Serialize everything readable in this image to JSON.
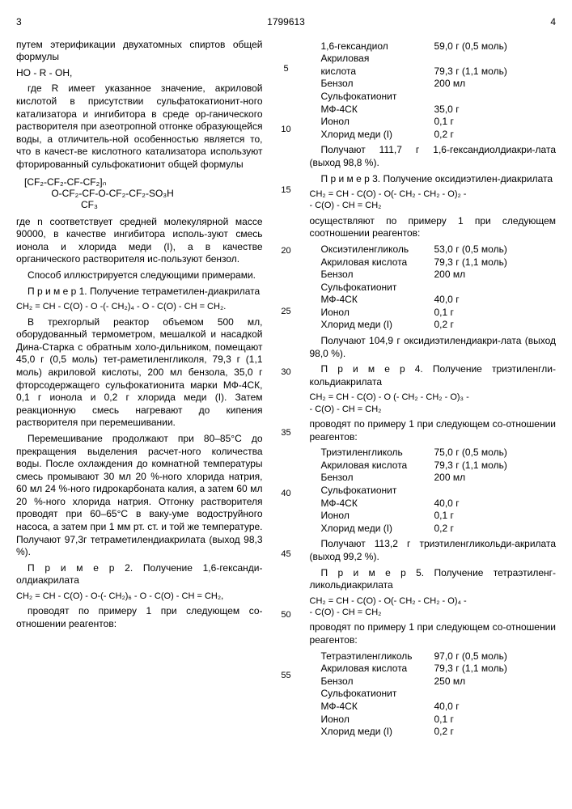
{
  "header": {
    "page_left": "3",
    "patent": "1799613",
    "page_right": "4"
  },
  "left": {
    "p1": "путем этерификации двухатомных спиртов общей формулы",
    "f1": "HO - R - OH,",
    "p2": "где R имеет указанное значение, акриловой кислотой в присутствии сульфатокатионит-ного катализатора и ингибитора в среде ор-ганического растворителя при азеотропной отгонке образующейся воды, а отличитель-ной особенностью является то, что в качест-ве кислотного катализатора используют фторированный сульфокатионит общей формулы",
    "struct_l1": "[CF₂-CF₂-CF-CF₂]ₙ",
    "struct_l2": "          O-CF₂-CF-O-CF₂-CF₂-SO₃H",
    "struct_l3": "                     CF₃",
    "p3": "где n соответствует средней молекулярной массе 90000, в качестве ингибитора исполь-зуют смесь ионола и хлорида меди (I), а в качестве органического растворителя ис-пользуют бензол.",
    "p4": "Способ иллюстрируется следующими примерами.",
    "p5": "П р и м е р 1. Получение тетраметилен-диакрилата",
    "f2": "CH₂ = CH - C(O) - O -(- CH₂)₄ - O - C(O) - CH = CH₂.",
    "p6": "В трехгорлый реактор объемом 500 мл, оборудованный термометром, мешалкой и насадкой Дина-Старка с обратным холо-дильником, помещают 45,0 г (0,5 моль) тет-раметиленгликоля, 79,3 г (1,1 моль) акриловой кислоты, 200 мл бензола, 35,0 г фторсодержащего сульфокатионита марки МФ-4СК, 0,1 г ионола и 0,2 г хлорида меди (I). Затем реакционную смесь нагревают до кипения растворителя при перемешивании.",
    "p7": "Перемешивание продолжают при 80–85°С до прекращения выделения расчет-ного количества воды. После охлаждения до комнатной температуры смесь промывают 30 мл 20 %-ного хлорида натрия, 60 мл 24 %-ного гидрокарбоната калия, а затем 60 мл 20 %-ного хлорида натрия. Отгонку растворителя проводят при 60–65°С в ваку-уме водоструйного насоса, а затем при 1 мм рт. ст. и той же температуре. Получают 97,3г тетраметилендиакрилата (выход 98,3 %).",
    "p8": "П р и м е р 2. Получение 1,6-гександи-олдиакрилата",
    "f3": "CH₂ = CH - C(O) - O-(- CH₂)₆ - O - C(O) - CH = CH₂,",
    "p9": "проводят по примеру 1 при следующем со-отношении реагентов:"
  },
  "right": {
    "t1": [
      [
        "1,6-гександиол",
        "59,0 г (0,5 моль)"
      ],
      [
        "Акриловая",
        ""
      ],
      [
        "кислота",
        "79,3 г (1,1 моль)"
      ],
      [
        "Бензол",
        "200 мл"
      ],
      [
        "Сульфокатионит",
        ""
      ],
      [
        "МФ-4СК",
        "35,0 г"
      ],
      [
        "Ионол",
        "0,1 г"
      ],
      [
        "Хлорид меди (I)",
        "0,2 г"
      ]
    ],
    "r1": "Получают 111,7 г 1,6-гександиолдиакри-лата (выход 98,8 %).",
    "p_ex3": "П р и м е р 3. Получение оксидиэтилен-диакрилата",
    "f_ex3a": "CH₂ = CH - C(O) - O(- CH₂ - CH₂ - O)₂ -",
    "f_ex3b": "- C(O) - CH = CH₂",
    "p_ex3b": "осуществляют по примеру 1 при следующем соотношении реагентов:",
    "t2": [
      [
        "Оксиэтиленгликоль",
        "53,0 г (0,5 моль)"
      ],
      [
        "Акриловая кислота",
        "79,3 г (1,1 моль)"
      ],
      [
        "Бензол",
        "200 мл"
      ],
      [
        "Сульфокатионит",
        ""
      ],
      [
        "МФ-4СК",
        "40,0 г"
      ],
      [
        "Ионол",
        "0,1 г"
      ],
      [
        "Хлорид меди (I)",
        "0,2 г"
      ]
    ],
    "r2": "Получают 104,9 г оксидиэтилендиакри-лата (выход 98,0 %).",
    "p_ex4": "П р и м е р 4. Получение триэтиленгли-кольдиакрилата",
    "f_ex4a": "CH₂ = CH - C(O) - O (- CH₂ - CH₂ - O)₃ -",
    "f_ex4b": "- C(O) - CH = CH₂",
    "p_ex4b": "проводят по примеру 1 при следующем со-отношении реагентов:",
    "t3": [
      [
        "Триэтиленгликоль",
        "75,0 г (0,5 моль)"
      ],
      [
        "Акриловая кислота",
        "79,3 г (1,1 моль)"
      ],
      [
        "Бензол",
        "200 мл"
      ],
      [
        "Сульфокатионит",
        ""
      ],
      [
        "МФ-4СК",
        "40,0 г"
      ],
      [
        "Ионол",
        "0,1 г"
      ],
      [
        "Хлорид меди (I)",
        "0,2 г"
      ]
    ],
    "r3": "Получают 113,2 г триэтиленгликольди-акрилата (выход 99,2 %).",
    "p_ex5": "П р и м е р 5. Получение тетраэтиленг-ликольдиакрилата",
    "f_ex5a": "CH₂ = CH - C(O) - O(- CH₂ - CH₂ - O)₄ -",
    "f_ex5b": "- C(O) - CH = CH₂",
    "p_ex5b": "проводят по примеру 1 при следующем со-отношении реагентов:",
    "t4": [
      [
        "Тетраэтиленгликоль",
        "97,0 г (0,5 моль)"
      ],
      [
        "Акриловая кислота",
        "79,3 г (1,1 моль)"
      ],
      [
        "Бензол",
        "250 мл"
      ],
      [
        "Сульфокатионит",
        ""
      ],
      [
        "МФ-4СК",
        "40,0 г"
      ],
      [
        "Ионол",
        "0,1 г"
      ],
      [
        "Хлорид меди (I)",
        "0,2 г"
      ]
    ]
  },
  "gutter_marks": [
    "5",
    "10",
    "15",
    "20",
    "25",
    "30",
    "35",
    "40",
    "45",
    "50",
    "55"
  ]
}
